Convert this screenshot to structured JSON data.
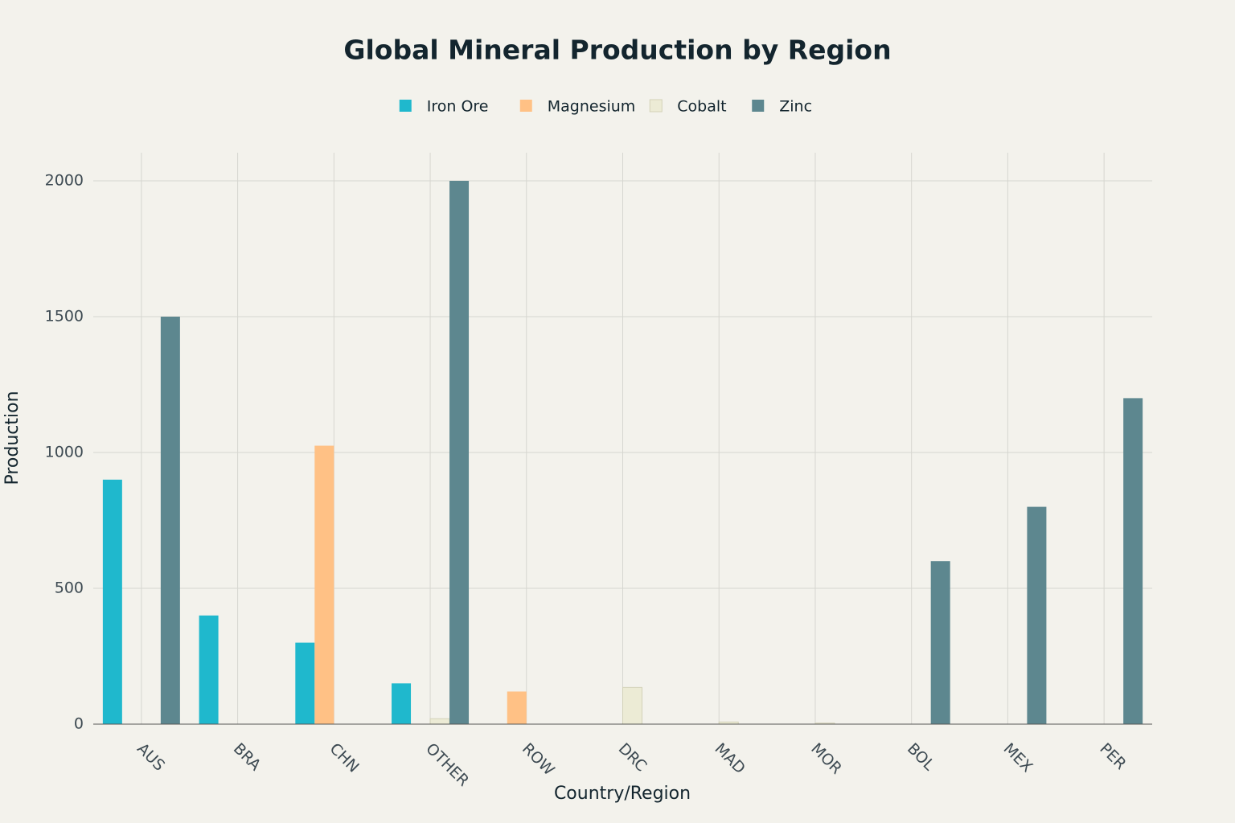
{
  "chart_data": {
    "type": "bar",
    "title": "Global Mineral Production by Region",
    "x_label": "Country/Region",
    "y_label": "Production",
    "categories": [
      "AUS",
      "BRA",
      "CHN",
      "OTHER",
      "ROW",
      "DRC",
      "MAD",
      "MOR",
      "BOL",
      "MEX",
      "PER"
    ],
    "series": [
      {
        "name": "Iron Ore",
        "color": "#1fb8cd",
        "values": [
          900,
          400,
          300,
          150,
          0,
          0,
          0,
          0,
          0,
          0,
          0
        ]
      },
      {
        "name": "Magnesium",
        "color": "#ffc185",
        "values": [
          0,
          0,
          1025,
          0,
          120,
          0,
          0,
          0,
          0,
          0,
          0
        ]
      },
      {
        "name": "Cobalt",
        "color": "#eceBd5",
        "values": [
          0,
          0,
          0,
          20,
          0,
          135,
          8,
          4,
          0,
          0,
          0
        ]
      },
      {
        "name": "Zinc",
        "color": "#5d878f",
        "values": [
          1500,
          0,
          0,
          2000,
          0,
          0,
          0,
          0,
          600,
          800,
          1200
        ]
      }
    ],
    "ylim": [
      0,
      2000
    ],
    "yticks": [
      0,
      500,
      1000,
      1500,
      2000
    ],
    "grid": true,
    "legend": "top"
  }
}
